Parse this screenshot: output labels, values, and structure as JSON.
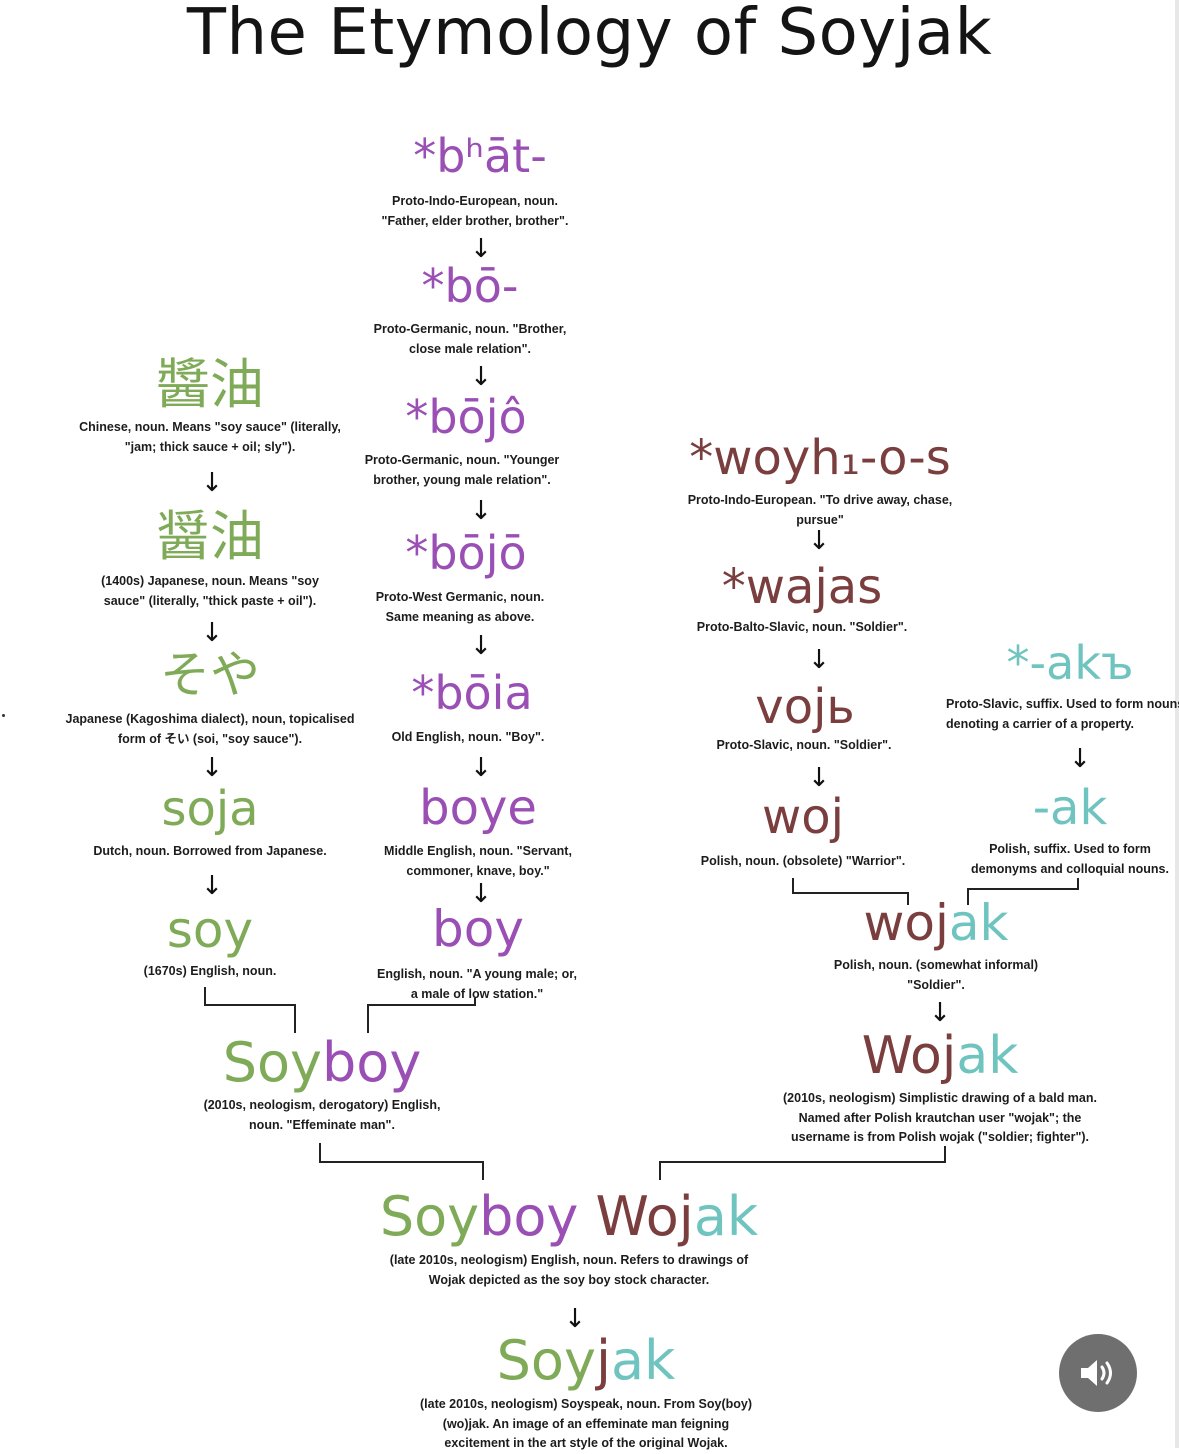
{
  "title": "The Etymology of Soyjak",
  "words": {
    "bhat": "*bʰāt-",
    "bo": "*bō-",
    "bojo_circ": "*bōjô",
    "bojo": "*bōjō",
    "boia": "*bōia",
    "boye": "boye",
    "boy": "boy",
    "jiangyou_cn": "醬油",
    "jiangyou_jp": "醤油",
    "soya_kana": "そや",
    "soja": "soja",
    "soy": "soy",
    "woyh": "*woyh₁-o-s",
    "wajas": "*wajas",
    "vojb": "vojь",
    "woj": "woj",
    "akb": "*-akъ",
    "ak": "-ak",
    "wojak_a": "woj",
    "wojak_b": "ak",
    "Wojak_a": "Woj",
    "Wojak_b": "ak",
    "soyboy_a": "Soy",
    "soyboy_b": "boy",
    "sbw_a": "Soy",
    "sbw_b": "boy",
    "sbw_c": " Woj",
    "sbw_d": "ak",
    "soyjak_a": "Soy",
    "soyjak_b": "j",
    "soyjak_c": "ak"
  },
  "descriptions": {
    "bhat": "Proto-Indo-European, noun.\n\"Father, elder brother, brother\".",
    "bo": "Proto-Germanic, noun. \"Brother,\nclose male relation\".",
    "bojo_circ": "Proto-Germanic, noun. \"Younger\nbrother, young male relation\".",
    "bojo": "Proto-West Germanic, noun.\nSame meaning as above.",
    "boia": "Old English, noun. \"Boy\".",
    "boye": "Middle English, noun. \"Servant,\ncommoner, knave, boy.\"",
    "boy": "English, noun. \"A young male; or,\na male of low station.\"",
    "jiangyou_cn": "Chinese, noun. Means \"soy sauce\" (literally,\n\"jam; thick sauce + oil; sly\").",
    "jiangyou_jp": "(1400s) Japanese, noun. Means \"soy\nsauce\" (literally, \"thick paste + oil\").",
    "soya_kana": "Japanese (Kagoshima dialect), noun, topicalised\nform of そい (soi, \"soy sauce\").",
    "soja": "Dutch, noun. Borrowed from Japanese.",
    "soy": "(1670s) English, noun.",
    "woyh": "Proto-Indo-European. \"To drive away, chase,\npursue\"",
    "wajas": "Proto-Balto-Slavic, noun. \"Soldier\".",
    "vojb": "Proto-Slavic, noun. \"Soldier\".",
    "woj": "Polish, noun. (obsolete) \"Warrior\".",
    "akb": "Proto-Slavic, suffix. Used to form nouns\ndenoting a carrier of a property.",
    "ak": "Polish, suffix. Used to form\ndemonyms and colloquial nouns.",
    "wojak": "Polish, noun. (somewhat informal)\n\"Soldier\".",
    "Wojak": "(2010s, neologism) Simplistic drawing of a bald man.\nNamed after Polish krautchan user \"wojak\"; the\nusername is from Polish wojak (\"soldier; fighter\").",
    "soyboy": "(2010s, neologism, derogatory) English,\nnoun. \"Effeminate man\".",
    "sbw": "(late 2010s, neologism) English, noun. Refers to drawings of\nWojak depicted as the soy boy stock character.",
    "soyjak": "(late 2010s, neologism) Soyspeak, noun. From Soy(boy)\n(wo)jak. An image of an effeminate man feigning\nexcitement in the art style of the original Wojak."
  },
  "arrow_glyph": "↓",
  "colors": {
    "purple": "#9a4fb5",
    "green": "#7faa57",
    "brown": "#7a3e3e",
    "teal": "#6fc4c0"
  },
  "icons": {
    "audio_button": "speaker-icon"
  }
}
